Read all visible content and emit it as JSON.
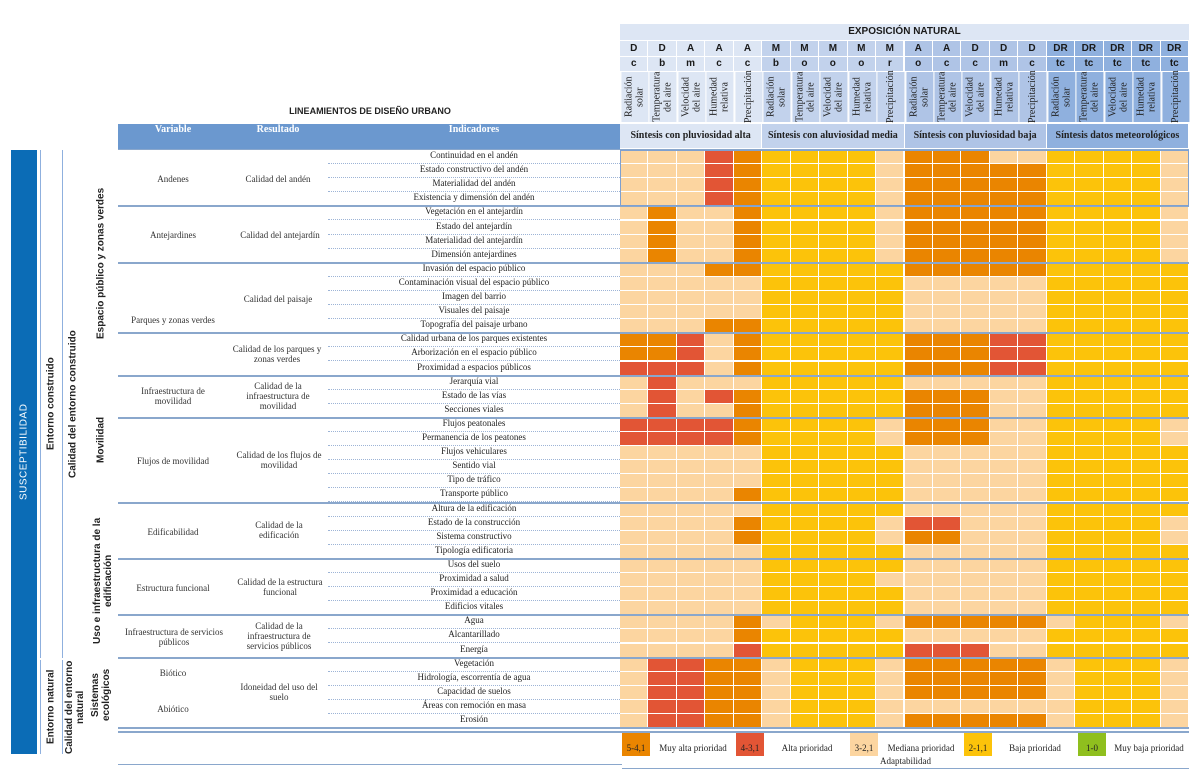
{
  "header": {
    "main_title": "EXPOSICIÓN NATURAL",
    "lineamientos_title": "LINEAMIENTOS DE DISEÑO URBANO",
    "col_headers": {
      "variable": "Variable",
      "resultado": "Resultado",
      "indicadores": "Indicadores"
    },
    "groups": [
      {
        "label": "Síntesis con pluviosidad alta",
        "color": "#dde6f4"
      },
      {
        "label": "Síntesis con aluviosidad media",
        "color": "#c2d2ec"
      },
      {
        "label": "Síntesis con pluviosidad baja",
        "color": "#afc4e6"
      },
      {
        "label": "Síntesis datos meteorológicos",
        "color": "#8fb0de"
      }
    ],
    "columns": [
      {
        "code1": "D",
        "code2": "c",
        "name": "Radiación solar"
      },
      {
        "code1": "D",
        "code2": "b",
        "name": "Temperatura del aire"
      },
      {
        "code1": "A",
        "code2": "m",
        "name": "Velocidad del aire"
      },
      {
        "code1": "A",
        "code2": "c",
        "name": "Humedad relativa"
      },
      {
        "code1": "A",
        "code2": "c",
        "name": "Precipitación"
      },
      {
        "code1": "M",
        "code2": "b",
        "name": "Radiación solar"
      },
      {
        "code1": "M",
        "code2": "o",
        "name": "Temperatura del aire"
      },
      {
        "code1": "M",
        "code2": "o",
        "name": "Velocidad del aire"
      },
      {
        "code1": "M",
        "code2": "o",
        "name": "Humedad relativa"
      },
      {
        "code1": "M",
        "code2": "r",
        "name": "Precipitación"
      },
      {
        "code1": "A",
        "code2": "o",
        "name": "Radiación solar"
      },
      {
        "code1": "A",
        "code2": "c",
        "name": "Temperatura del aire"
      },
      {
        "code1": "D",
        "code2": "c",
        "name": "Velocidad del aire"
      },
      {
        "code1": "D",
        "code2": "m",
        "name": "Humedad relativa"
      },
      {
        "code1": "D",
        "code2": "c",
        "name": "Precipitación"
      },
      {
        "code1": "DR",
        "code2": "tc",
        "name": "Radiación solar"
      },
      {
        "code1": "DR",
        "code2": "tc",
        "name": "Temperatura del aire"
      },
      {
        "code1": "DR",
        "code2": "tc",
        "name": "Velocidad del aire"
      },
      {
        "code1": "DR",
        "code2": "tc",
        "name": "Humedad relativa"
      },
      {
        "code1": "DR",
        "code2": "tc",
        "name": "Precipitación"
      }
    ]
  },
  "left_bands": {
    "susceptibilidad": "SUSCEPTIBILIDAD",
    "entorno_construido": "Entorno construido",
    "calidad_entorno_construido": "Calidad del entorno construido",
    "entorno_natural": "Entorno natural",
    "calidad_entorno_natural": "Calidad del entorno natural",
    "espacio_publico": "Espacio público y zonas verdes",
    "movilidad": "Movilidad",
    "uso_infra": "Uso e infraestructura de la edificación",
    "sistemas_ecologicos": "Sistemas ecológicos"
  },
  "variables": [
    {
      "label": "Andenes"
    },
    {
      "label": "Antejardines"
    },
    {
      "label": "Parques y zonas verdes"
    },
    {
      "label": "Infraestructura de movilidad"
    },
    {
      "label": "Flujos de movilidad"
    },
    {
      "label": "Edificabilidad"
    },
    {
      "label": "Estructura funcional"
    },
    {
      "label": "Infraestructura de servicios públicos"
    },
    {
      "label": "Biótico"
    },
    {
      "label": "Abiótico"
    }
  ],
  "resultados": [
    {
      "label": "Calidad del andén"
    },
    {
      "label": "Calidad del antejardín"
    },
    {
      "label": "Calidad del paisaje"
    },
    {
      "label": "Calidad de los parques y zonas verdes"
    },
    {
      "label": "Calidad de la infraestructura de movilidad"
    },
    {
      "label": "Calidad de los flujos de movilidad"
    },
    {
      "label": "Calidad de la edificación"
    },
    {
      "label": "Calidad de la estructura funcional"
    },
    {
      "label": "Calidad de la infraestructura de servicios públicos"
    },
    {
      "label": "Idoneidad del uso del suelo"
    }
  ],
  "legend": {
    "items": [
      {
        "range": "5-4,1",
        "label": "Muy alta prioridad",
        "color": "#ea8500"
      },
      {
        "range": "4-3,1",
        "label": "Alta prioridad",
        "color": "#e25535"
      },
      {
        "range": "3-2,1",
        "label": "Mediana prioridad",
        "color": "#fcd5a0"
      },
      {
        "range": "2-1,1",
        "label": "Baja prioridad",
        "color": "#fcc30a"
      },
      {
        "range": "1-0",
        "label": "Muy baja prioridad",
        "color": "#8fbf1e"
      }
    ],
    "footer": "Adaptabilidad"
  },
  "chart_data": {
    "type": "heatmap",
    "title": "EXPOSICIÓN NATURAL — LINEAMIENTOS DE DISEÑO URBANO",
    "color_key": {
      "O": "5-4,1 Muy alta prioridad",
      "R": "4-3,1 Alta prioridad",
      "L": "3-2,1 Mediana prioridad",
      "Y": "2-1,1 Baja prioridad",
      "G": "1-0 Muy baja prioridad"
    },
    "colors": {
      "O": "#ea8500",
      "R": "#e25535",
      "L": "#fcd5a0",
      "Y": "#fcc30a",
      "G": "#8fbf1e"
    },
    "rows": [
      {
        "indicator": "Continuidad en el andén",
        "values": "LLLRO YYYYL OOOLL YYYYL"
      },
      {
        "indicator": "Estado constructivo del andén",
        "values": "LLLRO YYYYL OOOOO YYYYL"
      },
      {
        "indicator": "Materialidad del andén",
        "values": "LLLRO YYYYL OOOOO YYYYL"
      },
      {
        "indicator": "Existencia y dimensión del andén",
        "values": "LLLRO YYYYL OOOOO YYYYL"
      },
      {
        "indicator": "Vegetación en el antejardín",
        "values": "LOLLO YYYYL OOOOO YYYYL"
      },
      {
        "indicator": "Estado del antejardín",
        "values": "LOLLO YYYYL OOOOO YYYYL"
      },
      {
        "indicator": "Materialidad del antejardín",
        "values": "LOLLO YYYYL OOOOO YYYYL"
      },
      {
        "indicator": "Dimensión antejardines",
        "values": "LOLLO YYYYL OOOOO YYYYL"
      },
      {
        "indicator": "Invasión del espacio público",
        "values": "LLLOO YYYYY OOOOO YYYYY"
      },
      {
        "indicator": "Contaminación visual del espacio público",
        "values": "LLLLL YYYYY LLLLL YYYYY"
      },
      {
        "indicator": "Imagen del barrio",
        "values": "LLLLL YYYYY LLLLL YYYYY"
      },
      {
        "indicator": "Visuales del paisaje",
        "values": "LLLLL YYYYY LLLLL YYYYY"
      },
      {
        "indicator": "Topografía del paisaje urbano",
        "values": "LLLOO YYYYY LLLLL YYYYY"
      },
      {
        "indicator": "Calidad urbana de los parques existentes",
        "values": "OORLO YYYYY OOORR YYYYY"
      },
      {
        "indicator": "Arborización en el espacio público",
        "values": "OORLO YYYYY OOORR YYYYY"
      },
      {
        "indicator": "Proximidad a espacios públicos",
        "values": "RRRLO YYYYY OOORR YYYYY"
      },
      {
        "indicator": "Jerarquía vial",
        "values": "LRLLL YYYYY LLLLL YYYYY"
      },
      {
        "indicator": "Estado de las vías",
        "values": "LRLRO YYYYY OOOLL YYYYY"
      },
      {
        "indicator": "Secciones viales",
        "values": "LRLLO YYYYY OOOLL YYYYY"
      },
      {
        "indicator": "Flujos peatonales",
        "values": "RRRRO YYYYL OOOLL YYYYL"
      },
      {
        "indicator": "Permanencia de los peatones",
        "values": "RRRRO YYYYL OOOLL YYYYL"
      },
      {
        "indicator": "Flujos vehiculares",
        "values": "LLLLL YYYYY LLLLL YYYYY"
      },
      {
        "indicator": "Sentido vial",
        "values": "LLLLL YYYYY LLLLL YYYYY"
      },
      {
        "indicator": "Tipo de tráfico",
        "values": "LLLLL YYYYY LLLLL YYYYY"
      },
      {
        "indicator": "Transporte público",
        "values": "LLLLO YYYYY LLLLL YYYYY"
      },
      {
        "indicator": "Altura de la edificación",
        "values": "LLLLL YYYYY LLLLL YYYYY"
      },
      {
        "indicator": "Estado de la construcción",
        "values": "LLLLO YYYYL RRLLL YYYYL"
      },
      {
        "indicator": "Sistema constructivo",
        "values": "LLLLO YYYYL OOLLL YYYYL"
      },
      {
        "indicator": "Tipología edificatoria",
        "values": "LLLLL YYYYY LLLLL YYYYY"
      },
      {
        "indicator": "Usos del suelo",
        "values": "LLLLL YYYYY LLLLL YYYYY"
      },
      {
        "indicator": "Proximidad a salud",
        "values": "LLLLL YYYYL LLLLL YYYYY"
      },
      {
        "indicator": "Proximidad a educación",
        "values": "LLLLL YYYYY LLLLL YYYYY"
      },
      {
        "indicator": "Edificios vitales",
        "values": "LLLLL YYYYY LLLLL YYYYY"
      },
      {
        "indicator": "Agua",
        "values": "LLLLO LYYYL OOOOO LYYYL"
      },
      {
        "indicator": "Alcantarillado",
        "values": "LLLLO YYYYY LLLLL YYYYY"
      },
      {
        "indicator": "Energía",
        "values": "LLLLR YYYYY RRRLL YYYYY"
      },
      {
        "indicator": "Vegetación",
        "values": "LRROO LYYYL OOOOO LYYYL"
      },
      {
        "indicator": "Hidrología, escorrentía de agua",
        "values": "LRROO LYYYL OOOOO LYYYL"
      },
      {
        "indicator": "Capacidad de suelos",
        "values": "LRROO LYYYL OOOOO LYYYL"
      },
      {
        "indicator": "Áreas con remoción en masa",
        "values": "LRROO LYYYL LLLLL LYYYL"
      },
      {
        "indicator": "Erosión",
        "values": "LRROO LYYYL OOOOO LYYYL"
      }
    ]
  }
}
